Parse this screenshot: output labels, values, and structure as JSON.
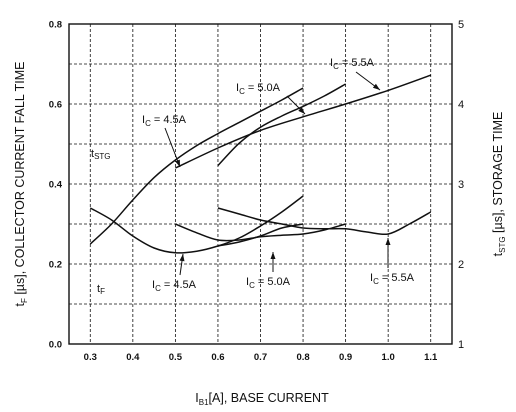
{
  "chart_data": {
    "type": "line",
    "x_axis": {
      "label_main": "I",
      "label_sub": "B1",
      "label_rest": "[A], BASE CURRENT",
      "range": [
        0.25,
        1.15
      ],
      "ticks": [
        "0.3",
        "0.4",
        "0.5",
        "0.6",
        "0.7",
        "0.8",
        "0.9",
        "1.0",
        "1.1"
      ]
    },
    "y_left": {
      "label_main": "t",
      "label_sub": "F",
      "label_rest": " [µs], COLLECTOR CURRENT FALL TIME",
      "range": [
        0,
        0.8
      ],
      "ticks": [
        "0.0",
        "0.2",
        "0.4",
        "0.6",
        "0.8"
      ]
    },
    "y_right": {
      "label_main": "t",
      "label_sub": "STG",
      "label_rest": " [µs], STORAGE TIME",
      "range": [
        1,
        5
      ],
      "ticks": [
        "1",
        "2",
        "3",
        "4",
        "5"
      ]
    },
    "grid": true,
    "series": [
      {
        "group": "tSTG",
        "ic": "4.5A",
        "axis": "right",
        "x": [
          0.3,
          0.35,
          0.4,
          0.45,
          0.5,
          0.55,
          0.6,
          0.65,
          0.7,
          0.75,
          0.8
        ],
        "y": [
          2.25,
          2.5,
          2.8,
          3.08,
          3.3,
          3.48,
          3.63,
          3.77,
          3.91,
          4.05,
          4.2
        ]
      },
      {
        "group": "tSTG",
        "ic": "5.0A",
        "axis": "right",
        "x": [
          0.6,
          0.65,
          0.7,
          0.75,
          0.8,
          0.85,
          0.9
        ],
        "y": [
          3.23,
          3.51,
          3.71,
          3.85,
          3.97,
          4.1,
          4.25
        ]
      },
      {
        "group": "tSTG",
        "ic": "5.5A",
        "axis": "right",
        "x": [
          0.5,
          0.6,
          0.7,
          0.8,
          0.9,
          1.0,
          1.1
        ],
        "y": [
          3.2,
          3.45,
          3.67,
          3.84,
          4.0,
          4.17,
          4.36
        ]
      },
      {
        "group": "tF",
        "ic": "4.5A",
        "axis": "left",
        "x": [
          0.3,
          0.35,
          0.4,
          0.45,
          0.5,
          0.55,
          0.6,
          0.65,
          0.7,
          0.75,
          0.8
        ],
        "y": [
          0.34,
          0.31,
          0.27,
          0.24,
          0.228,
          0.232,
          0.245,
          0.265,
          0.295,
          0.33,
          0.37
        ]
      },
      {
        "group": "tF",
        "ic": "5.0A",
        "axis": "left",
        "x": [
          0.6,
          0.65,
          0.7,
          0.75,
          0.8
        ],
        "y": [
          0.245,
          0.255,
          0.27,
          0.29,
          0.3
        ]
      },
      {
        "group": "tF",
        "ic": "5.0A",
        "axis": "left",
        "x": [
          0.5,
          0.55,
          0.6,
          0.65,
          0.7,
          0.75,
          0.8,
          0.85,
          0.9
        ],
        "y": [
          0.3,
          0.278,
          0.26,
          0.26,
          0.268,
          0.272,
          0.275,
          0.285,
          0.3
        ]
      },
      {
        "group": "tF",
        "ic": "5.5A",
        "axis": "left",
        "x": [
          0.6,
          0.65,
          0.7,
          0.75,
          0.8,
          0.85,
          0.9,
          0.95,
          1.0,
          1.05,
          1.1
        ],
        "y": [
          0.34,
          0.325,
          0.31,
          0.3,
          0.29,
          0.288,
          0.288,
          0.28,
          0.275,
          0.3,
          0.33
        ]
      }
    ],
    "annotations": [
      {
        "label": "I",
        "sub": "C",
        "value": " = 4.5A",
        "group": "tSTG"
      },
      {
        "label": "I",
        "sub": "C",
        "value": " = 5.0A",
        "group": "tSTG"
      },
      {
        "label": "I",
        "sub": "C",
        "value": " = 5.5A",
        "group": "tSTG"
      },
      {
        "label": "I",
        "sub": "C",
        "value": " = 4.5A",
        "group": "tF"
      },
      {
        "label": "I",
        "sub": "C",
        "value": " = 5.0A",
        "group": "tF"
      },
      {
        "label": "I",
        "sub": "C",
        "value": " = 5.5A",
        "group": "tF"
      }
    ],
    "curve_group_labels": [
      {
        "label": "t",
        "sub": "STG"
      },
      {
        "label": "t",
        "sub": "F"
      }
    ]
  }
}
